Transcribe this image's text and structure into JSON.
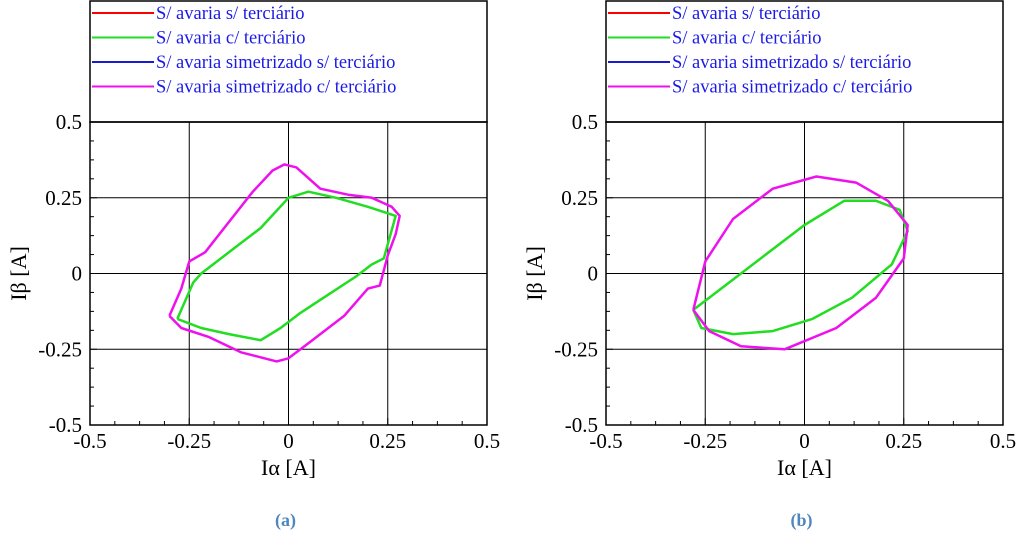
{
  "chart_data": [
    {
      "type": "scatter",
      "caption": "(a)",
      "title": "",
      "xlabel": "Iα [A]",
      "ylabel": "Iβ [A]",
      "xlim": [
        -0.5,
        0.5
      ],
      "ylim": [
        -0.5,
        0.5
      ],
      "xticks": [
        "-0.5",
        "-0.25",
        "0",
        "0.25",
        "0.5"
      ],
      "yticks": [
        "0.5",
        "0.25",
        "0",
        "-0.25",
        "-0.5"
      ],
      "grid": true,
      "legend_position": "top",
      "series": [
        {
          "name": "S/ avaria s/ terciário",
          "color": "#ff0000",
          "x": [],
          "y": []
        },
        {
          "name": "S/ avaria c/ terciário",
          "color": "#22dd22",
          "x": [
            -0.28,
            -0.24,
            -0.22,
            -0.15,
            -0.07,
            0.0,
            0.05,
            0.12,
            0.2,
            0.27,
            0.24,
            0.21,
            0.17,
            0.1,
            0.03,
            -0.02,
            -0.07,
            -0.15,
            -0.22,
            -0.28
          ],
          "y": [
            -0.15,
            -0.03,
            0.0,
            0.07,
            0.15,
            0.25,
            0.27,
            0.25,
            0.22,
            0.19,
            0.05,
            0.03,
            -0.01,
            -0.07,
            -0.13,
            -0.18,
            -0.22,
            -0.2,
            -0.18,
            -0.15
          ]
        },
        {
          "name": "S/ avaria simetrizado s/ terciário",
          "color": "#1a1ad0",
          "x": [],
          "y": []
        },
        {
          "name": "S/ avaria simetrizado c/ terciário",
          "color": "#ee11ee",
          "x": [
            -0.3,
            -0.27,
            -0.25,
            -0.21,
            -0.15,
            -0.09,
            -0.04,
            -0.01,
            0.02,
            0.08,
            0.15,
            0.21,
            0.26,
            0.28,
            0.27,
            0.25,
            0.23,
            0.2,
            0.14,
            0.05,
            0.0,
            -0.03,
            -0.12,
            -0.2,
            -0.27,
            -0.3
          ],
          "y": [
            -0.14,
            -0.05,
            0.04,
            0.07,
            0.17,
            0.27,
            0.34,
            0.36,
            0.35,
            0.28,
            0.26,
            0.25,
            0.22,
            0.19,
            0.13,
            0.06,
            -0.04,
            -0.05,
            -0.14,
            -0.23,
            -0.28,
            -0.29,
            -0.26,
            -0.21,
            -0.18,
            -0.14
          ]
        }
      ]
    },
    {
      "type": "scatter",
      "caption": "(b)",
      "title": "",
      "xlabel": "Iα [A]",
      "ylabel": "Iβ [A]",
      "xlim": [
        -0.5,
        0.5
      ],
      "ylim": [
        -0.5,
        0.5
      ],
      "xticks": [
        "-0.5",
        "-0.25",
        "0",
        "0.25",
        "0.5"
      ],
      "yticks": [
        "0.5",
        "0.25",
        "0",
        "-0.25",
        "-0.5"
      ],
      "grid": true,
      "legend_position": "top",
      "series": [
        {
          "name": "S/ avaria s/ terciário",
          "color": "#ff0000",
          "x": [],
          "y": []
        },
        {
          "name": "S/ avaria c/ terciário",
          "color": "#22dd22",
          "x": [
            -0.28,
            -0.2,
            -0.1,
            0.0,
            0.1,
            0.18,
            0.24,
            0.26,
            0.22,
            0.12,
            0.02,
            -0.08,
            -0.18,
            -0.26,
            -0.28
          ],
          "y": [
            -0.12,
            -0.04,
            0.06,
            0.16,
            0.24,
            0.24,
            0.21,
            0.14,
            0.03,
            -0.08,
            -0.15,
            -0.19,
            -0.2,
            -0.18,
            -0.12
          ]
        },
        {
          "name": "S/ avaria simetrizado s/ terciário",
          "color": "#1a1ad0",
          "x": [],
          "y": []
        },
        {
          "name": "S/ avaria simetrizado c/ terciário",
          "color": "#ee11ee",
          "x": [
            -0.28,
            -0.25,
            -0.18,
            -0.08,
            0.03,
            0.13,
            0.21,
            0.26,
            0.25,
            0.18,
            0.08,
            -0.05,
            -0.16,
            -0.24,
            -0.28
          ],
          "y": [
            -0.12,
            0.04,
            0.18,
            0.28,
            0.32,
            0.3,
            0.24,
            0.16,
            0.05,
            -0.08,
            -0.18,
            -0.25,
            -0.24,
            -0.19,
            -0.12
          ]
        }
      ]
    }
  ]
}
